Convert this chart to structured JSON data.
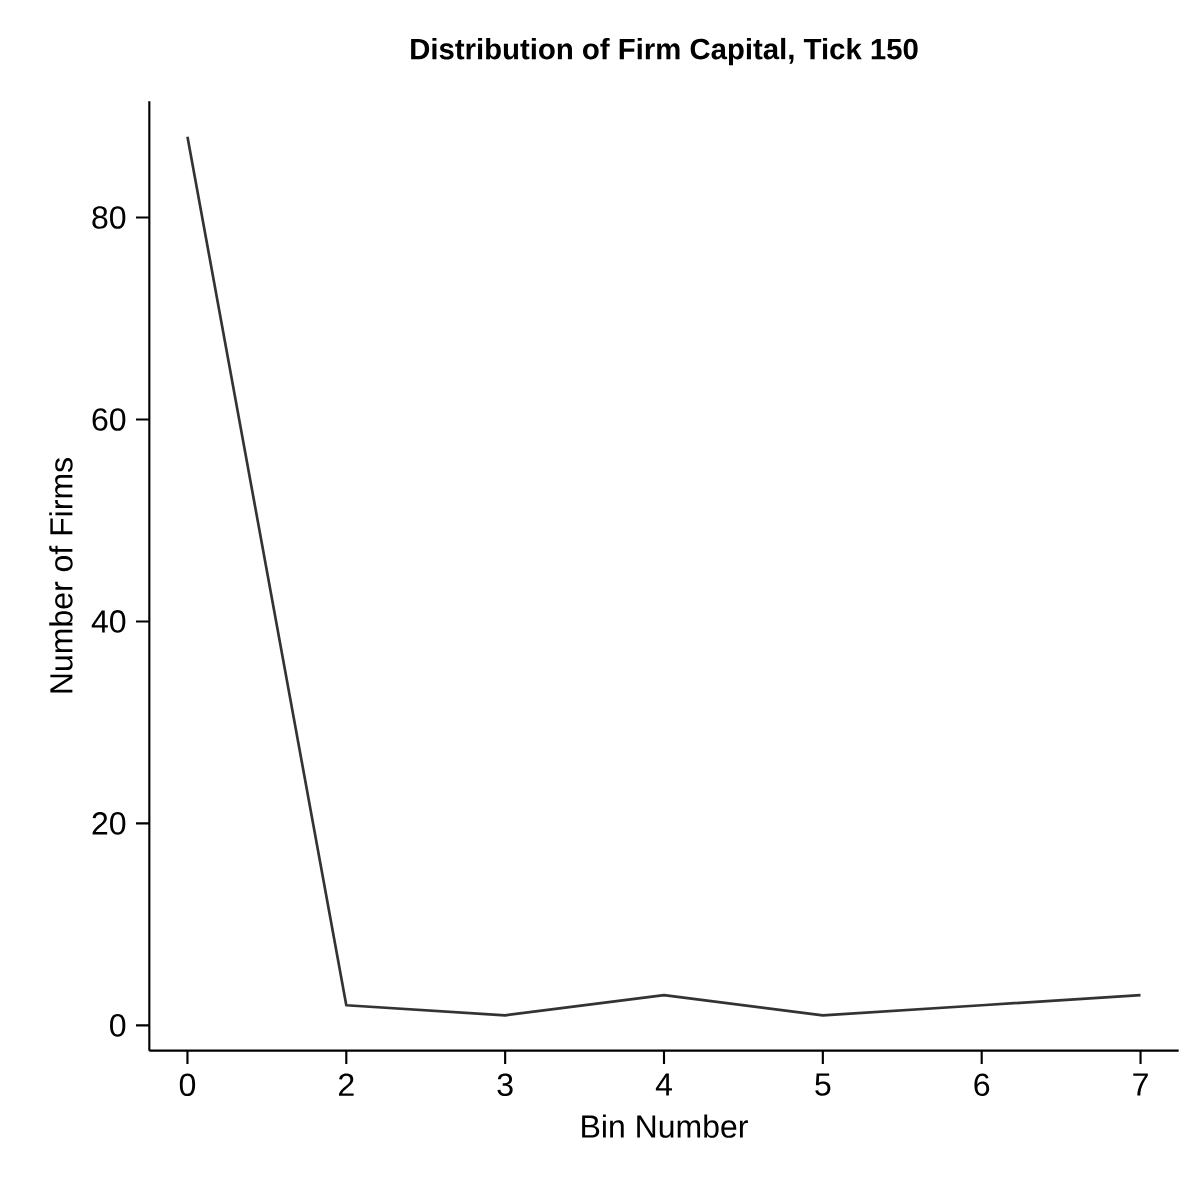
{
  "chart_data": {
    "type": "line",
    "title": "Distribution of Firm Capital, Tick 150",
    "xlabel": "Bin Number",
    "ylabel": "Number of Firms",
    "categories": [
      "0",
      "2",
      "3",
      "4",
      "5",
      "6",
      "7"
    ],
    "values": [
      88,
      2,
      1,
      3,
      1,
      2,
      3
    ],
    "color": "#333333",
    "ylim": [
      -2.5,
      91.5
    ],
    "yticks": [
      0,
      20,
      40,
      60,
      80
    ],
    "grid": false,
    "line_style": "solid"
  }
}
